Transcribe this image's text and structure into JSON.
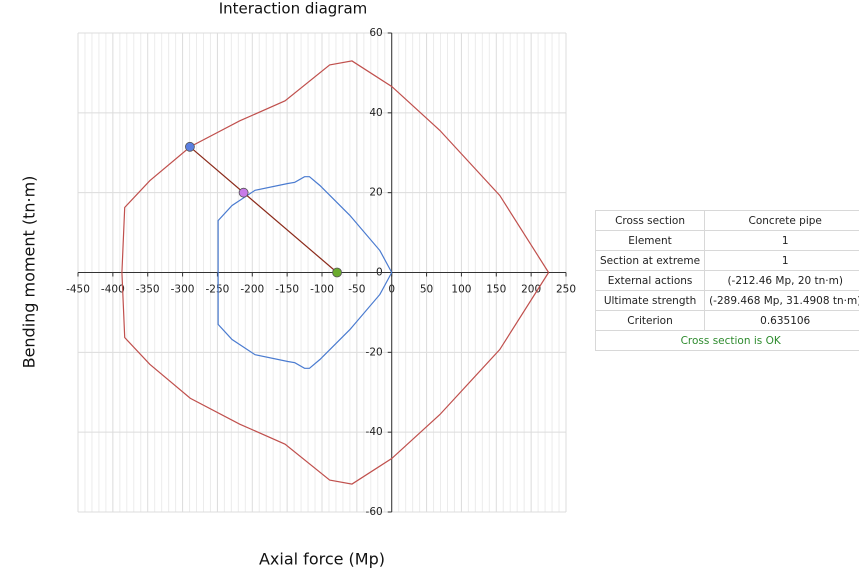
{
  "chart_data": {
    "type": "line",
    "title": "Interaction diagram",
    "x_label": "Axial force (Mp)",
    "y_label": "Bending moment (tn·m)",
    "xlim": [
      -450,
      250
    ],
    "ylim": [
      -60,
      60
    ],
    "xticks": [
      -450,
      -400,
      -350,
      -300,
      -250,
      -200,
      -150,
      -100,
      -50,
      0,
      50,
      100,
      150,
      200,
      250
    ],
    "yticks": [
      -60,
      -40,
      -20,
      0,
      20,
      40,
      60
    ],
    "grid": true,
    "series": [
      {
        "color": "#c0504d",
        "x": [
          225,
          155,
          69,
          0,
          -57,
          -89,
          -153,
          -218,
          -289,
          -347,
          -383,
          -387,
          -387,
          -383,
          -347,
          -289,
          -218,
          -153,
          -89,
          -57,
          0,
          69,
          155,
          225
        ],
        "values": [
          0,
          19.3,
          35.6,
          46.6,
          53,
          52,
          43,
          38,
          31.5,
          23,
          16.3,
          0,
          0,
          -16.3,
          -23,
          -31.5,
          -38,
          -43,
          -52,
          -53,
          -46.6,
          -35.6,
          -19.3,
          0
        ]
      },
      {
        "color": "#4a7bd0",
        "x": [
          0,
          -17,
          -60,
          -103,
          -118,
          -125,
          -139,
          -149,
          -196,
          -229,
          -249,
          -249,
          -249,
          -229,
          -196,
          -149,
          -139,
          -125,
          -118,
          -103,
          -60,
          -17,
          0
        ],
        "values": [
          0,
          5.5,
          14.3,
          21.8,
          24,
          24,
          22.6,
          22.3,
          20.6,
          16.8,
          13,
          0,
          -13,
          -16.8,
          -20.6,
          -22.3,
          -22.6,
          -24,
          -24,
          -21.8,
          -14.3,
          -5.5,
          0
        ]
      },
      {
        "color": "#8b2a1a",
        "x": [
          -78.4,
          -289.468
        ],
        "values": [
          0,
          31.4908
        ]
      }
    ],
    "markers": [
      {
        "color": "#5b7fe0",
        "x": -289.468,
        "y": 31.4908
      },
      {
        "color": "#c77be8",
        "x": -212.46,
        "y": 20
      },
      {
        "color": "#6aab2e",
        "x": -78.4,
        "y": 0
      }
    ]
  },
  "table": {
    "rows": [
      [
        "Cross section",
        "Concrete pipe"
      ],
      [
        "Element",
        "1"
      ],
      [
        "Section at extreme",
        "1"
      ],
      [
        "External actions",
        "(-212.46 Mp, 20 tn·m)"
      ],
      [
        "Ultimate strength",
        "(-289.468 Mp, 31.4908 tn·m)"
      ],
      [
        "Criterion",
        "0.635106"
      ]
    ],
    "status": "Cross section is OK"
  }
}
